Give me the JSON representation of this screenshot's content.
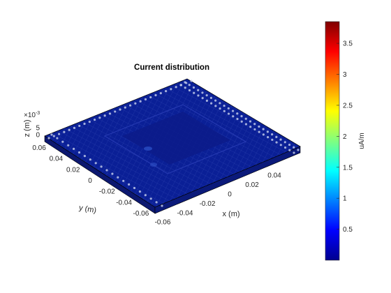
{
  "chart_data": {
    "type": "surface3d",
    "title": "Current distribution",
    "xlabel": "x (m)",
    "ylabel": "y (m)",
    "zlabel": "z (m)",
    "x_ticks": [
      "-0.06",
      "-0.04",
      "-0.02",
      "0",
      "0.02",
      "0.04"
    ],
    "x_tick_values": [
      -0.06,
      -0.04,
      -0.02,
      0,
      0.02,
      0.04
    ],
    "y_ticks": [
      "-0.06",
      "-0.04",
      "-0.02",
      "0",
      "0.02",
      "0.04",
      "0.06"
    ],
    "y_tick_values": [
      -0.06,
      -0.04,
      -0.02,
      0,
      0.02,
      0.04,
      0.06
    ],
    "z_ticks": [
      "5",
      "0"
    ],
    "z_tick_values": [
      0.005,
      0
    ],
    "z_exponent_label": "×10",
    "z_exponent_power": "-3",
    "xlim": [
      -0.065,
      0.065
    ],
    "ylim": [
      -0.065,
      0.065
    ],
    "colorbar": {
      "label": "uA/m",
      "colormap": "jet",
      "range": [
        0,
        3.85
      ],
      "ticks": [
        "0.5",
        "1",
        "1.5",
        "2",
        "2.5",
        "3",
        "3.5"
      ],
      "tick_values": [
        0.5,
        1,
        1.5,
        2,
        2.5,
        3,
        3.5
      ]
    },
    "surface_color": "#0a1f96"
  }
}
